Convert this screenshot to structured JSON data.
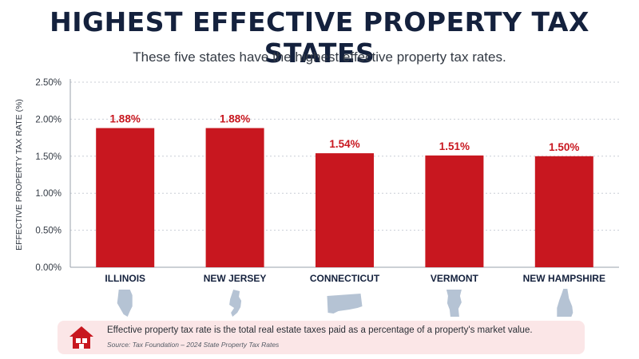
{
  "header": {
    "title": "HIGHEST EFFECTIVE PROPERTY TAX STATES",
    "subtitle": "These five states have the highest effective property tax rates."
  },
  "colors": {
    "bar": "#c8171f",
    "value_label": "#c8171f",
    "title": "#14213d",
    "state_silhouette": "#b5c3d4",
    "footer_bg": "#fbe6e7",
    "house_icon": "#c8171f"
  },
  "icons": {
    "state_shapes": [
      "illinois-shape-icon",
      "new-jersey-shape-icon",
      "connecticut-shape-icon",
      "vermont-shape-icon",
      "new-hampshire-shape-icon"
    ],
    "footer": "house-icon"
  },
  "chart_data": {
    "type": "bar",
    "categories": [
      "ILLINOIS",
      "NEW JERSEY",
      "CONNECTICUT",
      "VERMONT",
      "NEW HAMPSHIRE"
    ],
    "values": [
      1.88,
      1.88,
      1.54,
      1.51,
      1.5
    ],
    "value_labels": [
      "1.88%",
      "1.88%",
      "1.54%",
      "1.51%",
      "1.50%"
    ],
    "ylabel": "EFFECTIVE PROPERTY TAX RATE (%)",
    "xlabel": "",
    "ylim": [
      0,
      2.5
    ],
    "yticks": [
      0,
      0.5,
      1.0,
      1.5,
      2.0,
      2.5
    ],
    "ytick_labels": [
      "0.00%",
      "0.50%",
      "1.00%",
      "1.50%",
      "2.00%",
      "2.50%"
    ],
    "grid": true
  },
  "footer": {
    "text": "Effective property tax rate is the total real estate taxes paid as a percentage of a property's market value.",
    "source": "Source: Tax Foundation – 2024 State Property Tax Rates"
  }
}
